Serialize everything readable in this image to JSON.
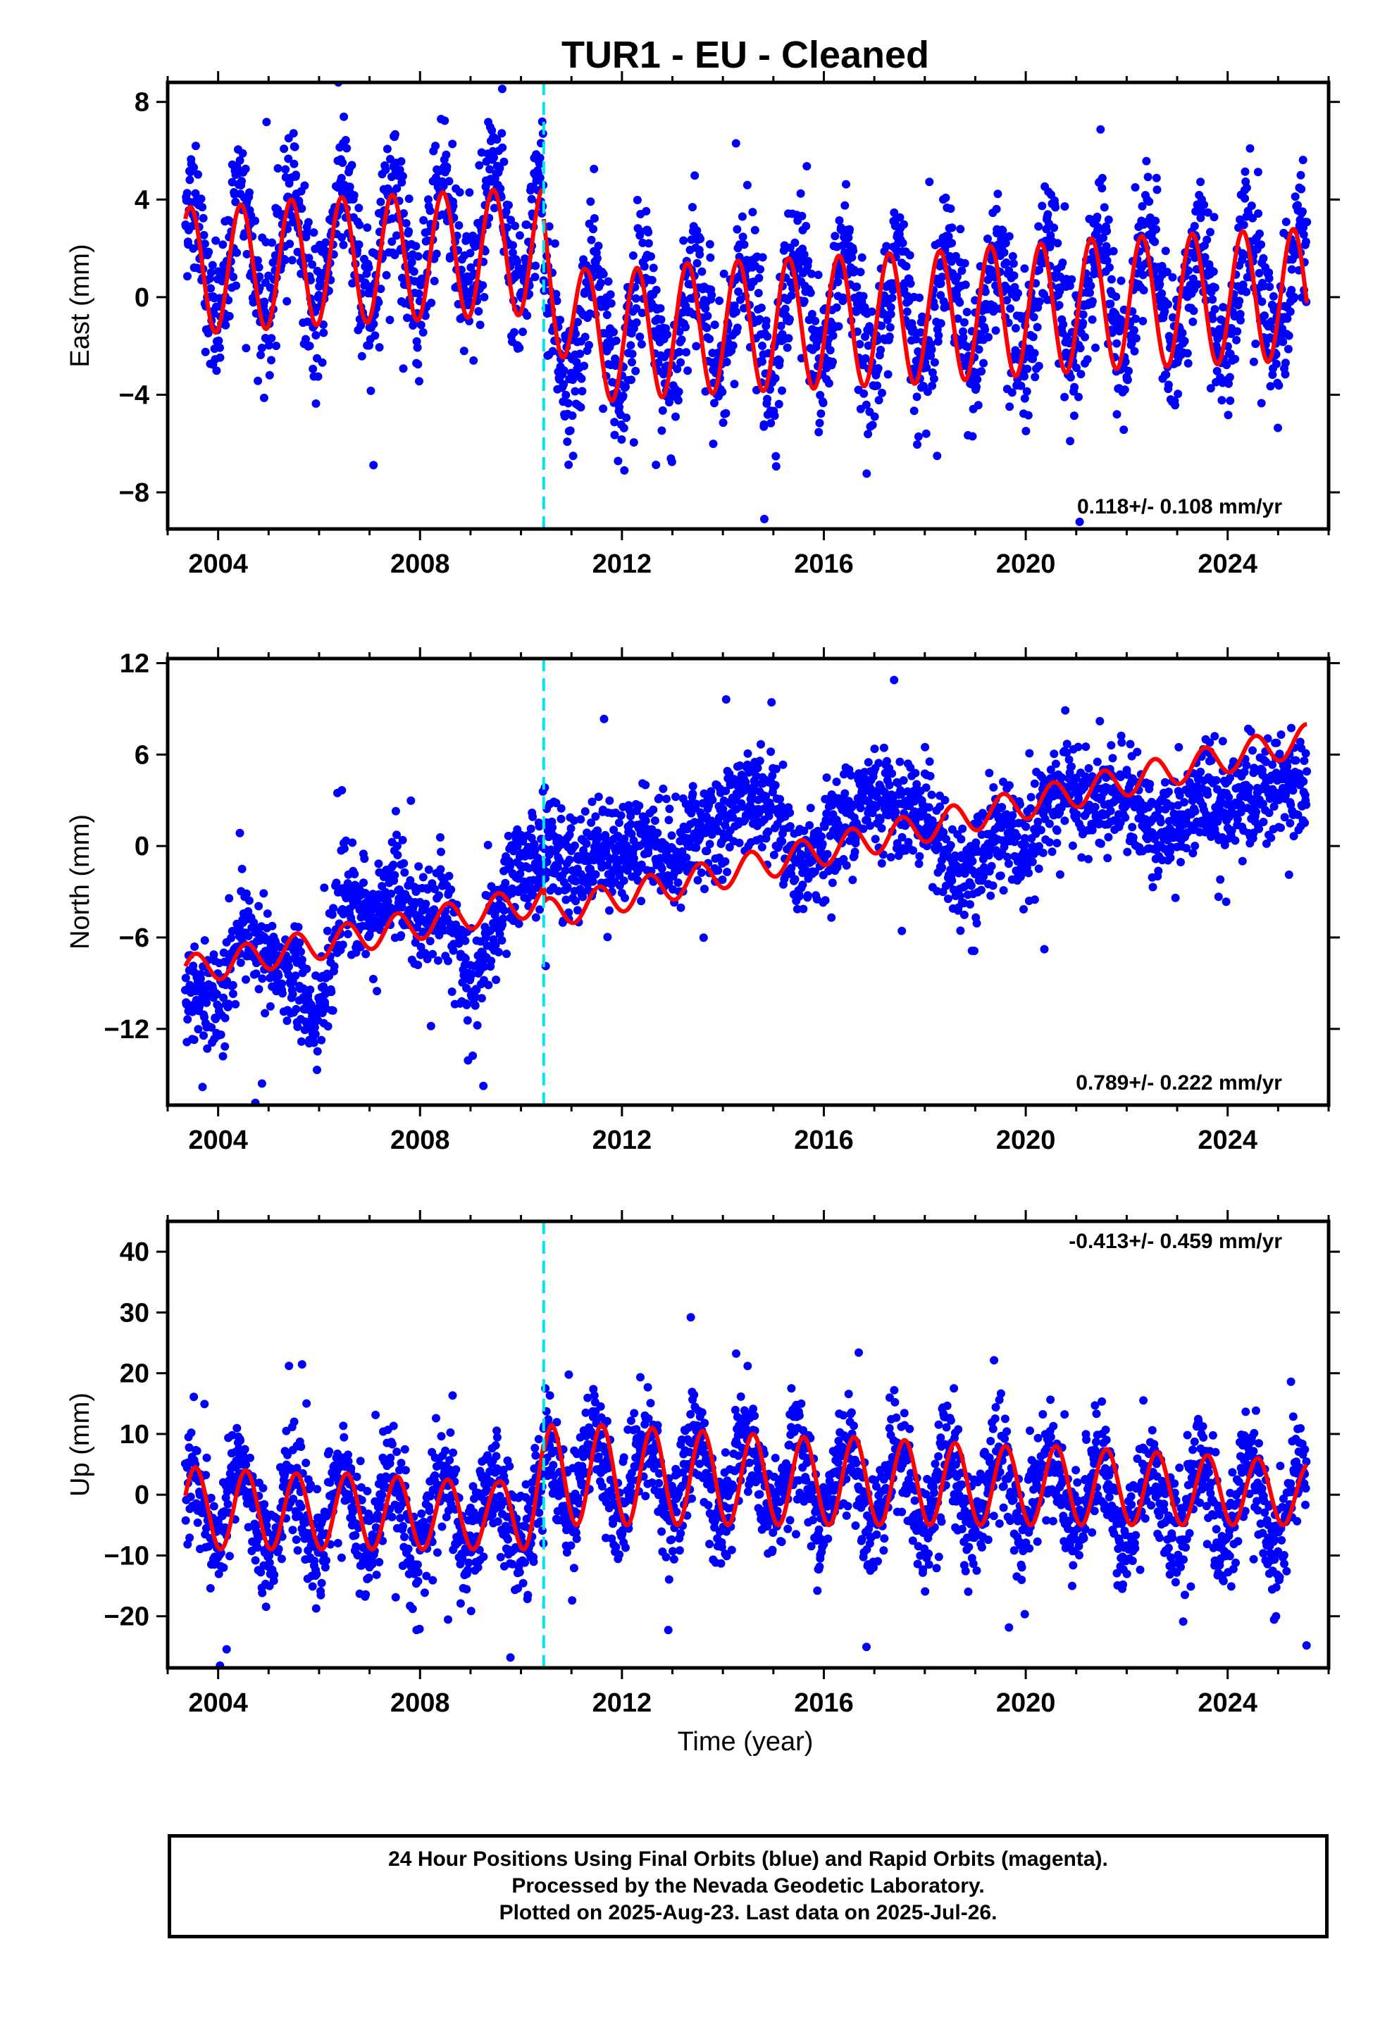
{
  "title": "TUR1  - EU - Cleaned",
  "x_axis_label": "Time (year)",
  "footer": {
    "line1": "24 Hour Positions Using Final Orbits (blue) and Rapid Orbits (magenta).",
    "line2": "Processed by the Nevada Geodetic Laboratory.",
    "line3": "Plotted on 2025-Aug-23. Last data on 2025-Jul-26."
  },
  "colors": {
    "final_orbits": "#0000ff",
    "rapid_orbits": "#ff00ff",
    "model_fit": "#ff0000",
    "equipment_change": "#00e5ee",
    "frame": "#000000"
  },
  "chart_data": [
    {
      "type": "scatter",
      "component": "East",
      "ylabel": "East (mm)",
      "xlim": [
        2003.0,
        2026.0
      ],
      "ylim": [
        -9.5,
        8.8
      ],
      "xticks": [
        "2004",
        "2008",
        "2012",
        "2016",
        "2020",
        "2024"
      ],
      "yticks": [
        "8",
        "4",
        "0",
        "−4",
        "−8"
      ],
      "ytick_values": [
        8,
        4,
        0,
        -4,
        -8
      ],
      "rate_text": "0.118+/- 0.108 mm/yr",
      "rate_position": "bottom-right",
      "break_epoch": 2010.45,
      "data_start": 2003.35,
      "data_end": 2025.57,
      "series": [
        {
          "name": "Final orbits",
          "style": "points",
          "trend_segments": [
            {
              "from": 2003.35,
              "to": 2010.45,
              "offset_mm": 1.3,
              "rate_mm_yr": 0.2
            },
            {
              "from": 2010.45,
              "to": 2025.57,
              "offset_mm": -1.4,
              "rate_mm_yr": 0.118
            }
          ],
          "seasonal_amplitude_mm": 2.6,
          "seasonal_amplitude_late_mm": 2.4,
          "scatter_sigma_mm": 1.4
        },
        {
          "name": "Model fit",
          "style": "line",
          "annual_peaks_yr_mm": [
            [
              2003.45,
              3.7
            ],
            [
              2004.5,
              3.8
            ],
            [
              2005.45,
              4.0
            ],
            [
              2006.45,
              4.1
            ],
            [
              2007.5,
              4.2
            ],
            [
              2008.45,
              4.3
            ],
            [
              2009.4,
              4.4
            ],
            [
              2010.4,
              4.5
            ],
            [
              2011.3,
              1.1
            ],
            [
              2012.3,
              1.2
            ],
            [
              2013.3,
              1.4
            ],
            [
              2014.3,
              1.5
            ],
            [
              2015.3,
              1.6
            ],
            [
              2016.3,
              1.7
            ],
            [
              2017.3,
              1.8
            ],
            [
              2018.3,
              1.9
            ],
            [
              2019.3,
              2.1
            ],
            [
              2020.3,
              2.2
            ],
            [
              2021.3,
              2.4
            ],
            [
              2022.3,
              2.5
            ],
            [
              2023.3,
              2.6
            ],
            [
              2024.3,
              2.7
            ],
            [
              2025.4,
              2.8
            ]
          ]
        }
      ]
    },
    {
      "type": "scatter",
      "component": "North",
      "ylabel": "North (mm)",
      "xlim": [
        2003.0,
        2026.0
      ],
      "ylim": [
        -17.0,
        12.3
      ],
      "xticks": [
        "2004",
        "2008",
        "2012",
        "2016",
        "2020",
        "2024"
      ],
      "yticks": [
        "12",
        "6",
        "0",
        "−6",
        "−12"
      ],
      "ytick_values": [
        12,
        6,
        0,
        -6,
        -12
      ],
      "rate_text": "0.789+/- 0.222 mm/yr",
      "rate_position": "bottom-right",
      "break_epoch": 2010.45,
      "data_start": 2003.35,
      "data_end": 2025.57,
      "series": [
        {
          "name": "Final orbits",
          "style": "points",
          "mean_path_yr_mm": [
            [
              2003.35,
              -10.5
            ],
            [
              2004.0,
              -10.0
            ],
            [
              2004.5,
              -5.5
            ],
            [
              2005.0,
              -8.0
            ],
            [
              2005.5,
              -8.5
            ],
            [
              2006.0,
              -11.0
            ],
            [
              2006.5,
              -3.0
            ],
            [
              2007.0,
              -5.0
            ],
            [
              2007.5,
              -2.5
            ],
            [
              2008.0,
              -5.5
            ],
            [
              2008.5,
              -3.0
            ],
            [
              2009.0,
              -10.0
            ],
            [
              2009.5,
              -5.0
            ],
            [
              2010.0,
              -1.5
            ],
            [
              2010.45,
              -0.5
            ],
            [
              2011.0,
              -1.5
            ],
            [
              2011.5,
              0.0
            ],
            [
              2012.0,
              -0.5
            ],
            [
              2012.5,
              1.0
            ],
            [
              2013.0,
              -1.0
            ],
            [
              2013.5,
              1.0
            ],
            [
              2014.0,
              1.5
            ],
            [
              2014.5,
              3.5
            ],
            [
              2015.0,
              2.5
            ],
            [
              2015.5,
              -2.5
            ],
            [
              2016.0,
              0.5
            ],
            [
              2016.5,
              2.0
            ],
            [
              2017.0,
              3.5
            ],
            [
              2017.5,
              2.5
            ],
            [
              2018.0,
              2.5
            ],
            [
              2018.5,
              -1.5
            ],
            [
              2019.0,
              -1.5
            ],
            [
              2019.5,
              1.5
            ],
            [
              2020.0,
              -0.5
            ],
            [
              2020.5,
              3.0
            ],
            [
              2021.0,
              3.5
            ],
            [
              2021.5,
              2.0
            ],
            [
              2022.0,
              3.5
            ],
            [
              2022.5,
              1.0
            ],
            [
              2023.0,
              2.0
            ],
            [
              2023.5,
              3.5
            ],
            [
              2024.0,
              2.5
            ],
            [
              2024.5,
              3.5
            ],
            [
              2025.0,
              3.5
            ],
            [
              2025.57,
              4.0
            ]
          ],
          "scatter_sigma_mm": 1.7
        },
        {
          "name": "Model fit",
          "style": "line",
          "trend_segments": [
            {
              "from": 2003.35,
              "to": 2010.45,
              "start_mm": -8.2,
              "end_mm": -3.5
            },
            {
              "from": 2010.45,
              "to": 2025.57,
              "start_mm": -4.5,
              "end_mm": 7.0
            }
          ],
          "seasonal_amplitude_mm": 1.0
        }
      ]
    },
    {
      "type": "scatter",
      "component": "Up",
      "ylabel": "Up (mm)",
      "xlim": [
        2003.0,
        2026.0
      ],
      "ylim": [
        -28.5,
        45.0
      ],
      "xticks": [
        "2004",
        "2008",
        "2012",
        "2016",
        "2020",
        "2024"
      ],
      "yticks": [
        "40",
        "30",
        "20",
        "10",
        "0",
        "−10",
        "−20"
      ],
      "ytick_values": [
        40,
        30,
        20,
        10,
        0,
        -10,
        -20
      ],
      "rate_text": "-0.413+/- 0.459 mm/yr",
      "rate_position": "top-right",
      "break_epoch": 2010.45,
      "data_start": 2003.35,
      "data_end": 2025.57,
      "series": [
        {
          "name": "Final orbits",
          "style": "points",
          "trend_segments": [
            {
              "from": 2003.35,
              "to": 2010.45,
              "offset_mm": -2.0,
              "rate_mm_yr": -0.3
            },
            {
              "from": 2010.45,
              "to": 2025.57,
              "offset_mm": 4.0,
              "rate_mm_yr": -0.413
            }
          ],
          "seasonal_amplitude_mm": 6.5,
          "scatter_sigma_mm": 4.5
        },
        {
          "name": "Model fit",
          "style": "line",
          "annual_peaks_yr_mm": [
            [
              2003.55,
              4.5
            ],
            [
              2004.55,
              4.0
            ],
            [
              2005.55,
              3.5
            ],
            [
              2006.55,
              3.5
            ],
            [
              2007.55,
              3.0
            ],
            [
              2008.55,
              2.5
            ],
            [
              2009.55,
              2.0
            ],
            [
              2010.6,
              11.5
            ],
            [
              2011.6,
              11.5
            ],
            [
              2012.6,
              11.0
            ],
            [
              2013.6,
              10.5
            ],
            [
              2014.6,
              10.0
            ],
            [
              2015.6,
              9.5
            ],
            [
              2016.6,
              9.5
            ],
            [
              2017.6,
              9.0
            ],
            [
              2018.6,
              8.5
            ],
            [
              2019.6,
              8.0
            ],
            [
              2020.6,
              8.0
            ],
            [
              2021.6,
              7.5
            ],
            [
              2022.6,
              7.0
            ],
            [
              2023.6,
              6.5
            ],
            [
              2024.6,
              6.0
            ],
            [
              2025.5,
              5.0
            ]
          ],
          "annual_troughs_mm_early": -9.0,
          "annual_troughs_mm_late": -5.0
        }
      ]
    }
  ]
}
